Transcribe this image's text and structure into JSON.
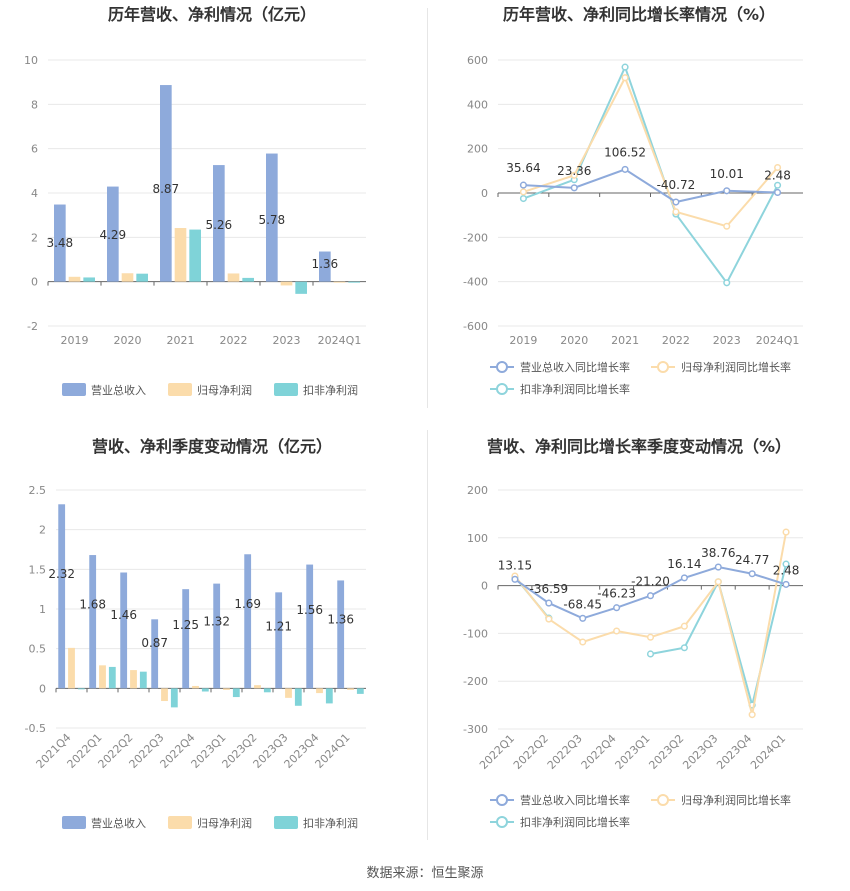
{
  "source": "数据来源：恒生聚源",
  "colors": {
    "revenue": "#8eaadb",
    "net_profit": "#fbdcab",
    "deducted_profit": "#7fd3d8",
    "revenue_line": "#8eaadb",
    "net_profit_line": "#fbdcab",
    "deducted_line": "#8ed4dc"
  },
  "chart_data": [
    {
      "id": "annual-amounts",
      "type": "bar",
      "title": "历年营收、净利情况（亿元）",
      "categories": [
        "2019",
        "2020",
        "2021",
        "2022",
        "2023",
        "2024Q1"
      ],
      "series": [
        {
          "name": "营业总收入",
          "values": [
            3.48,
            4.29,
            8.87,
            5.26,
            5.78,
            1.36
          ]
        },
        {
          "name": "归母净利润",
          "values": [
            0.22,
            0.38,
            2.42,
            0.37,
            -0.17,
            -0.02
          ]
        },
        {
          "name": "扣非净利润",
          "values": [
            0.19,
            0.36,
            2.35,
            0.17,
            -0.55,
            -0.04
          ]
        }
      ],
      "data_labels": [
        "3.48",
        "4.29",
        "8.87",
        "5.26",
        "5.78",
        "1.36"
      ],
      "ylim": [
        -2,
        10
      ],
      "yticks": [
        "10",
        "8",
        "6",
        "4",
        "2",
        "0",
        "-2"
      ],
      "legend": "bottom"
    },
    {
      "id": "annual-growth",
      "type": "line",
      "title": "历年营收、净利同比增长率情况（%）",
      "categories": [
        "2019",
        "2020",
        "2021",
        "2022",
        "2023",
        "2024Q1"
      ],
      "series": [
        {
          "name": "营业总收入同比增长率",
          "values": [
            35.64,
            23.36,
            106.52,
            -40.72,
            10.01,
            2.48
          ]
        },
        {
          "name": "归母净利润同比增长率",
          "values": [
            5,
            80,
            520,
            -85,
            -150,
            115
          ]
        },
        {
          "name": "扣非净利润同比增长率",
          "values": [
            -25,
            60,
            568,
            -95,
            -405,
            35
          ]
        }
      ],
      "data_labels": [
        "35.64",
        "23.36",
        "106.52",
        "-40.72",
        "10.01",
        "2.48"
      ],
      "ylim": [
        -600,
        600
      ],
      "yticks": [
        "600",
        "400",
        "200",
        "0",
        "-200",
        "-400",
        "-600"
      ],
      "legend": "bottom"
    },
    {
      "id": "quarterly-amounts",
      "type": "bar",
      "title": "营收、净利季度变动情况（亿元）",
      "categories": [
        "2021Q4",
        "2022Q1",
        "2022Q2",
        "2022Q3",
        "2022Q4",
        "2023Q1",
        "2023Q2",
        "2023Q3",
        "2023Q4",
        "2024Q1"
      ],
      "series": [
        {
          "name": "营业总收入",
          "values": [
            2.32,
            1.68,
            1.46,
            0.87,
            1.25,
            1.32,
            1.69,
            1.21,
            1.56,
            1.36
          ]
        },
        {
          "name": "归母净利润",
          "values": [
            0.51,
            0.29,
            0.23,
            -0.16,
            0.03,
            -0.02,
            0.04,
            -0.12,
            -0.06,
            -0.02
          ]
        },
        {
          "name": "扣非净利润",
          "values": [
            0.0,
            0.27,
            0.21,
            -0.24,
            -0.04,
            -0.11,
            -0.05,
            -0.22,
            -0.19,
            -0.07
          ]
        }
      ],
      "data_labels": [
        "2.32",
        "1.68",
        "1.46",
        "0.87",
        "1.25",
        "1.32",
        "1.69",
        "1.21",
        "1.56",
        "1.36"
      ],
      "ylim": [
        -0.5,
        2.5
      ],
      "yticks": [
        "2.5",
        "2",
        "1.5",
        "1",
        "0.5",
        "0",
        "-0.5"
      ],
      "legend": "bottom"
    },
    {
      "id": "quarterly-growth",
      "type": "line",
      "title": "营收、净利同比增长率季度变动情况（%）",
      "categories": [
        "2022Q1",
        "2022Q2",
        "2022Q3",
        "2022Q4",
        "2023Q1",
        "2023Q2",
        "2023Q3",
        "2023Q4",
        "2024Q1"
      ],
      "series": [
        {
          "name": "营业总收入同比增长率",
          "values": [
            13.15,
            -36.59,
            -68.45,
            -46.23,
            -21.2,
            16.14,
            38.76,
            24.77,
            2.48
          ]
        },
        {
          "name": "归母净利润同比增长率",
          "values": [
            20,
            -70,
            -118,
            -95,
            -108,
            -85,
            8,
            -270,
            112
          ]
        },
        {
          "name": "扣非净利润同比增长率",
          "values": [
            18,
            -68,
            null,
            null,
            -143,
            -130,
            8,
            -250,
            45
          ]
        }
      ],
      "data_labels": [
        "13.15",
        "-36.59",
        "-68.45",
        "-46.23",
        "-21.20",
        "16.14",
        "38.76",
        "24.77",
        "2.48"
      ],
      "ylim": [
        -300,
        200
      ],
      "yticks": [
        "200",
        "100",
        "0",
        "-100",
        "-200",
        "-300"
      ],
      "legend": "bottom"
    }
  ]
}
